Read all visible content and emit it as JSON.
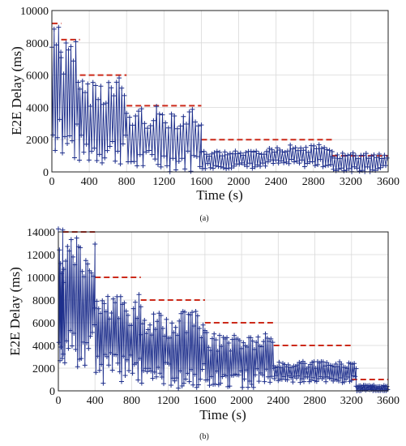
{
  "chart_data": [
    {
      "type": "line",
      "caption": "(a)",
      "xlabel": "Time (s)",
      "ylabel": "E2E Delay (ms)",
      "xlim": [
        0,
        3600
      ],
      "ylim": [
        0,
        10000
      ],
      "xticks": [
        0,
        400,
        800,
        1200,
        1600,
        2000,
        2400,
        2800,
        3200,
        3600
      ],
      "yticks": [
        0,
        2000,
        4000,
        6000,
        8000,
        10000
      ],
      "grid": true,
      "legend": "none",
      "series": [
        {
          "style": "dashed",
          "color": "#cc2a1a",
          "x": [
            0,
            100,
            100,
            300,
            300,
            800,
            800,
            1600,
            1600,
            3000,
            3000,
            3600
          ],
          "y": [
            9200,
            9200,
            8200,
            8200,
            6000,
            6000,
            4100,
            4100,
            2000,
            2000,
            1000,
            1000
          ]
        },
        {
          "style": "solid-markers",
          "marker": "plus",
          "color": "#1e2f8c",
          "segments": [
            {
              "x0": 0,
              "x1": 100,
              "hi": 9200,
              "lo": 600,
              "step": 12
            },
            {
              "x0": 100,
              "x1": 300,
              "hi": 8200,
              "lo": 400,
              "step": 13
            },
            {
              "x0": 300,
              "x1": 800,
              "hi": 6000,
              "lo": 400,
              "step": 14
            },
            {
              "x0": 800,
              "x1": 1600,
              "hi": 4100,
              "lo": 0,
              "step": 16
            },
            {
              "x0": 1600,
              "x1": 2300,
              "hi": 1300,
              "lo": 200,
              "step": 14
            },
            {
              "x0": 2300,
              "x1": 3000,
              "hi": 1700,
              "lo": 300,
              "step": 14
            },
            {
              "x0": 3000,
              "x1": 3600,
              "hi": 1200,
              "lo": 0,
              "step": 14
            }
          ]
        }
      ]
    },
    {
      "type": "line",
      "caption": "(b)",
      "xlabel": "Time (s)",
      "ylabel": "E2E Delay (ms)",
      "xlim": [
        0,
        3600
      ],
      "ylim": [
        0,
        14000
      ],
      "xticks": [
        0,
        400,
        800,
        1200,
        1600,
        2000,
        2400,
        2800,
        3200,
        3600
      ],
      "yticks": [
        0,
        2000,
        4000,
        6000,
        8000,
        10000,
        12000,
        14000
      ],
      "grid": true,
      "legend": "none",
      "series": [
        {
          "style": "dashed",
          "color": "#cc2a1a",
          "x": [
            50,
            400,
            400,
            900,
            900,
            1600,
            1600,
            2350,
            2350,
            3200,
            3200,
            3600
          ],
          "y": [
            14000,
            14000,
            10000,
            10000,
            8000,
            8000,
            6000,
            6000,
            4000,
            4000,
            1000,
            1000
          ]
        },
        {
          "style": "solid-markers",
          "marker": "plus",
          "color": "#1e2f8c",
          "segments": [
            {
              "x0": 0,
              "x1": 60,
              "hi": 14300,
              "lo": 2500,
              "step": 6
            },
            {
              "x0": 60,
              "x1": 400,
              "hi": 13500,
              "lo": 2000,
              "step": 10
            },
            {
              "x0": 400,
              "x1": 900,
              "hi": 8500,
              "lo": 600,
              "step": 10
            },
            {
              "x0": 900,
              "x1": 1600,
              "hi": 7000,
              "lo": 200,
              "step": 10
            },
            {
              "x0": 1600,
              "x1": 2350,
              "hi": 5200,
              "lo": 300,
              "step": 10
            },
            {
              "x0": 2350,
              "x1": 3250,
              "hi": 2600,
              "lo": 700,
              "step": 10
            },
            {
              "x0": 3250,
              "x1": 3600,
              "hi": 500,
              "lo": 0,
              "step": 8
            }
          ]
        }
      ]
    }
  ]
}
